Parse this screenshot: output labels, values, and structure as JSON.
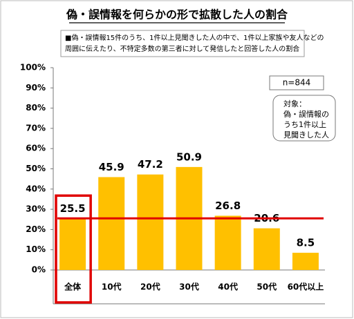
{
  "chart_data": {
    "type": "bar",
    "title": "偽・誤情報を何らかの形で拡散した人の割合",
    "subtitle_lines": [
      "■偽・誤情報15件のうち、1件以上見聞きした人の中で、1件以上家族や友人などの",
      "周囲に伝えたり、不特定多数の第三者に対して発信したと回答した人の割合"
    ],
    "sample_size": "n=844",
    "annotation_lines": [
      "対象：",
      "偽・誤情報の",
      "うち1件以上",
      "見聞きした人"
    ],
    "categories": [
      "全体",
      "10代",
      "20代",
      "30代",
      "40代",
      "50代",
      "60代以上"
    ],
    "values": [
      25.5,
      45.9,
      47.2,
      50.9,
      26.8,
      20.6,
      8.5
    ],
    "color": "#ffc000",
    "reference_line_color": "#e00000",
    "ylim": [
      0,
      100
    ],
    "yticks": [
      {
        "value": 0,
        "label": "0%"
      },
      {
        "value": 10,
        "label": "10%"
      },
      {
        "value": 20,
        "label": "20%"
      },
      {
        "value": 30,
        "label": "30%"
      },
      {
        "value": 40,
        "label": "40%"
      },
      {
        "value": 50,
        "label": "50%"
      },
      {
        "value": 60,
        "label": "60%"
      },
      {
        "value": 70,
        "label": "70%"
      },
      {
        "value": 80,
        "label": "80%"
      },
      {
        "value": 90,
        "label": "90%"
      },
      {
        "value": 100,
        "label": "100%"
      }
    ]
  }
}
